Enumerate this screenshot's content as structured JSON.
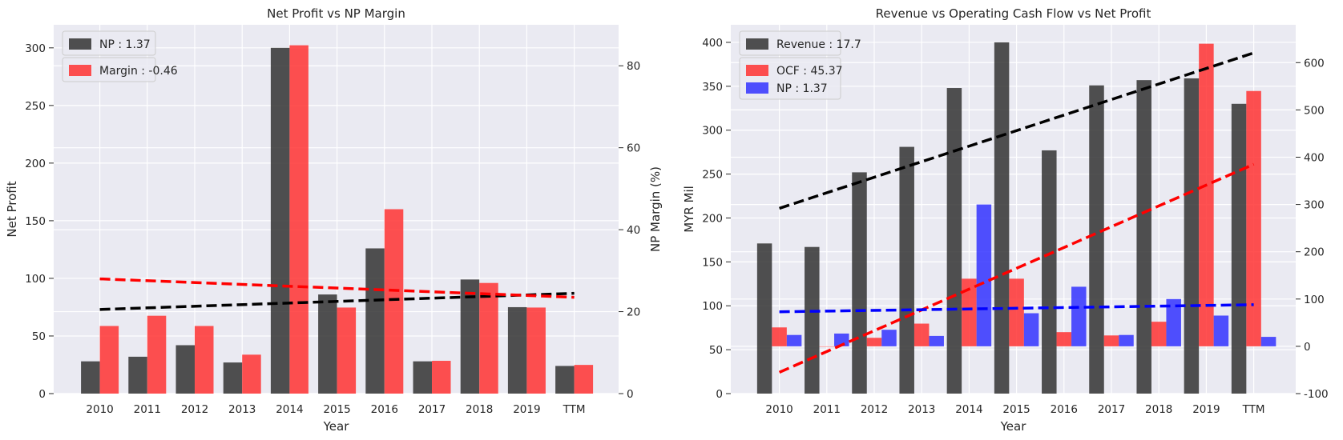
{
  "chart_data": [
    {
      "type": "bar",
      "title": "Net Profit vs NP Margin",
      "xlabel": "Year",
      "ylabel": "Net Profit",
      "y2label": "NP Margin (%)",
      "categories": [
        "2010",
        "2011",
        "2012",
        "2013",
        "2014",
        "2015",
        "2016",
        "2017",
        "2018",
        "2019",
        "TTM"
      ],
      "ylim": [
        0,
        320
      ],
      "yticks": [
        0,
        50,
        100,
        150,
        200,
        250,
        300
      ],
      "y2lim": [
        0,
        90
      ],
      "y2ticks": [
        0,
        20,
        40,
        60,
        80
      ],
      "series": [
        {
          "name": "NP : 1.37",
          "axis": "left",
          "color": "#333333",
          "values": [
            28,
            32,
            42,
            27,
            300,
            86,
            126,
            28,
            99,
            75,
            24
          ]
        },
        {
          "name": "Margin : -0.46",
          "axis": "right",
          "color": "#ff3333",
          "values": [
            16.5,
            19,
            16.5,
            9.5,
            85,
            21,
            45,
            8,
            27,
            21,
            7
          ]
        }
      ],
      "trendlines": [
        {
          "series": "NP : 1.37",
          "axis": "left",
          "color": "#000000",
          "start": 73,
          "end": 87
        },
        {
          "series": "Margin : -0.46",
          "axis": "right",
          "color": "#ff0000",
          "start": 28,
          "end": 23.5
        }
      ],
      "grid": true,
      "legend": "top-left"
    },
    {
      "type": "bar",
      "title": "Revenue vs Operating Cash Flow vs Net Profit",
      "xlabel": "Year",
      "ylabel": "MYR Mil",
      "categories": [
        "2010",
        "2011",
        "2012",
        "2013",
        "2014",
        "2015",
        "2016",
        "2017",
        "2018",
        "2019",
        "TTM"
      ],
      "ylim": [
        0,
        420
      ],
      "yticks": [
        0,
        50,
        100,
        150,
        200,
        250,
        300,
        350,
        400
      ],
      "y2lim": [
        -100,
        680
      ],
      "y2ticks": [
        -100,
        0,
        100,
        200,
        300,
        400,
        500,
        600
      ],
      "series": [
        {
          "name": "Revenue : 17.7",
          "axis": "left",
          "color": "#333333",
          "values": [
            171,
            167,
            252,
            281,
            348,
            400,
            277,
            351,
            357,
            359,
            330
          ]
        },
        {
          "name": "OCF : 45.37",
          "axis": "right",
          "color": "#ff3333",
          "values": [
            40,
            0,
            18,
            48,
            143,
            143,
            30,
            23,
            52,
            640,
            540
          ]
        },
        {
          "name": "NP : 1.37",
          "axis": "right",
          "color": "#3333ff",
          "values": [
            24,
            27,
            35,
            22,
            300,
            70,
            126,
            24,
            100,
            65,
            20
          ]
        }
      ],
      "trendlines": [
        {
          "series": "Revenue : 17.7",
          "axis": "left",
          "color": "#000000",
          "start": 211,
          "end": 388
        },
        {
          "series": "OCF : 45.37",
          "axis": "right",
          "color": "#ff0000",
          "start": -55,
          "end": 385
        },
        {
          "series": "NP : 1.37",
          "axis": "right",
          "color": "#0000ff",
          "start": 73,
          "end": 88
        }
      ],
      "grid": true,
      "legend": "top-left"
    }
  ]
}
